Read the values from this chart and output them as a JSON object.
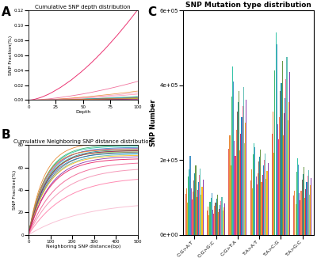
{
  "panel_A_title": "Cumulative SNP depth distribution",
  "panel_B_title": "Cumulative Neighboring SNP distance distribution",
  "panel_C_title": "SNP Mutation type distribution",
  "panel_A_xlabel": "Depth",
  "panel_A_ylabel": "SNP Fraction(%)",
  "panel_B_xlabel": "Neighboring SNP distance(bp)",
  "panel_B_ylabel": "SNP Fraction(%)",
  "panel_C_xlabel": "Mutation type",
  "panel_C_ylabel": "SNP Number",
  "panel_A_xlim": [
    0,
    100
  ],
  "panel_A_ylim": [
    0,
    0.12
  ],
  "panel_B_xlim": [
    0,
    500
  ],
  "panel_B_ylim": [
    0,
    80
  ],
  "panel_C_ylim": [
    0,
    600000
  ],
  "mutation_types": [
    "C:G>A:T",
    "C:G>G:C",
    "C:G>T:A",
    "T:A>A:T",
    "T:A>C:G",
    "T:A>G:C"
  ],
  "n_samples": 20,
  "bar_colors": [
    "#e74c3c",
    "#e67e22",
    "#d4ac0d",
    "#27ae60",
    "#1abc9c",
    "#2e86c1",
    "#8e44ad",
    "#e91e63",
    "#ff7043",
    "#795548",
    "#00838f",
    "#558b2f",
    "#f57f17",
    "#ad1457",
    "#0277bd",
    "#f06292",
    "#4db6ac",
    "#9ccc65",
    "#ffb300",
    "#7b1fa2"
  ],
  "depth_line_colors_pink": [
    "#e91e63",
    "#f06292",
    "#f48fb1",
    "#ff80ab"
  ],
  "depth_line_colors_other": [
    "#e67e22",
    "#27ae60",
    "#1abc9c",
    "#2e86c1",
    "#8e44ad",
    "#00838f",
    "#558b2f",
    "#795548",
    "#f57f17",
    "#0277bd",
    "#4db6ac",
    "#9ccc65",
    "#ffb300",
    "#7b1fa2",
    "#ad1457",
    "#ff7043"
  ],
  "dist_line_colors_pink": [
    "#e91e63",
    "#f06292",
    "#f48fb1",
    "#ff80ab",
    "#f8bbd0"
  ],
  "dist_line_colors_other": [
    "#e67e22",
    "#27ae60",
    "#1abc9c",
    "#2e86c1",
    "#8e44ad",
    "#00838f",
    "#558b2f",
    "#795548",
    "#f57f17",
    "#0277bd",
    "#4db6ac",
    "#9ccc65",
    "#ffb300",
    "#7b1fa2",
    "#ad1457"
  ],
  "background_color": "#ffffff",
  "panel_label_fontsize": 11,
  "title_fontsize": 5,
  "axis_label_fontsize": 4.5,
  "tick_fontsize": 4
}
